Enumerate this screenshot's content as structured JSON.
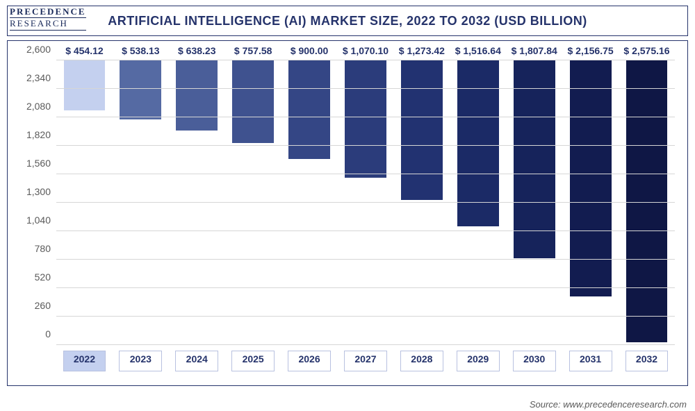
{
  "logo": {
    "line1": "PRECEDENCE",
    "line2": "RESEARCH"
  },
  "title": "ARTIFICIAL INTELLIGENCE (AI) MARKET SIZE, 2022 TO 2032 (USD BILLION)",
  "source": "Source: www.precedenceresearch.com",
  "chart": {
    "type": "bar",
    "ylim": [
      0,
      2600
    ],
    "ytick_step": 260,
    "yticks": [
      0,
      260,
      520,
      780,
      1040,
      1300,
      1560,
      1820,
      2080,
      2340,
      2600
    ],
    "ytick_labels": [
      "0",
      "260",
      "520",
      "780",
      "1,040",
      "1,300",
      "1,560",
      "1,820",
      "2,080",
      "2,340",
      "2,600"
    ],
    "grid_color": "#d6d6d6",
    "label_color": "#5a5a5a",
    "label_fontsize": 14,
    "value_fontsize": 14,
    "value_color": "#25336b",
    "value_prefix": "$ ",
    "categories": [
      "2022",
      "2023",
      "2024",
      "2025",
      "2026",
      "2027",
      "2028",
      "2029",
      "2030",
      "2031",
      "2032"
    ],
    "values": [
      454.12,
      538.13,
      638.23,
      757.58,
      900.0,
      1070.1,
      1273.42,
      1516.64,
      1807.84,
      2156.75,
      2575.16
    ],
    "value_labels": [
      "454.12",
      "538.13",
      "638.23",
      "757.58",
      "900.00",
      "1,070.10",
      "1,273.42",
      "1,516.64",
      "1,807.84",
      "2,156.75",
      "2,575.16"
    ],
    "bar_colors": [
      "#c4d0ef",
      "#556aa3",
      "#4a5e99",
      "#3f528f",
      "#344685",
      "#2b3c7b",
      "#223271",
      "#1b2a66",
      "#16235b",
      "#121c50",
      "#0f1745"
    ],
    "bar_width_pct": 74,
    "highlight_first_xcat": true,
    "background_color": "#ffffff",
    "border_color": "#25336b",
    "title_color": "#25336b",
    "title_fontsize": 18
  }
}
